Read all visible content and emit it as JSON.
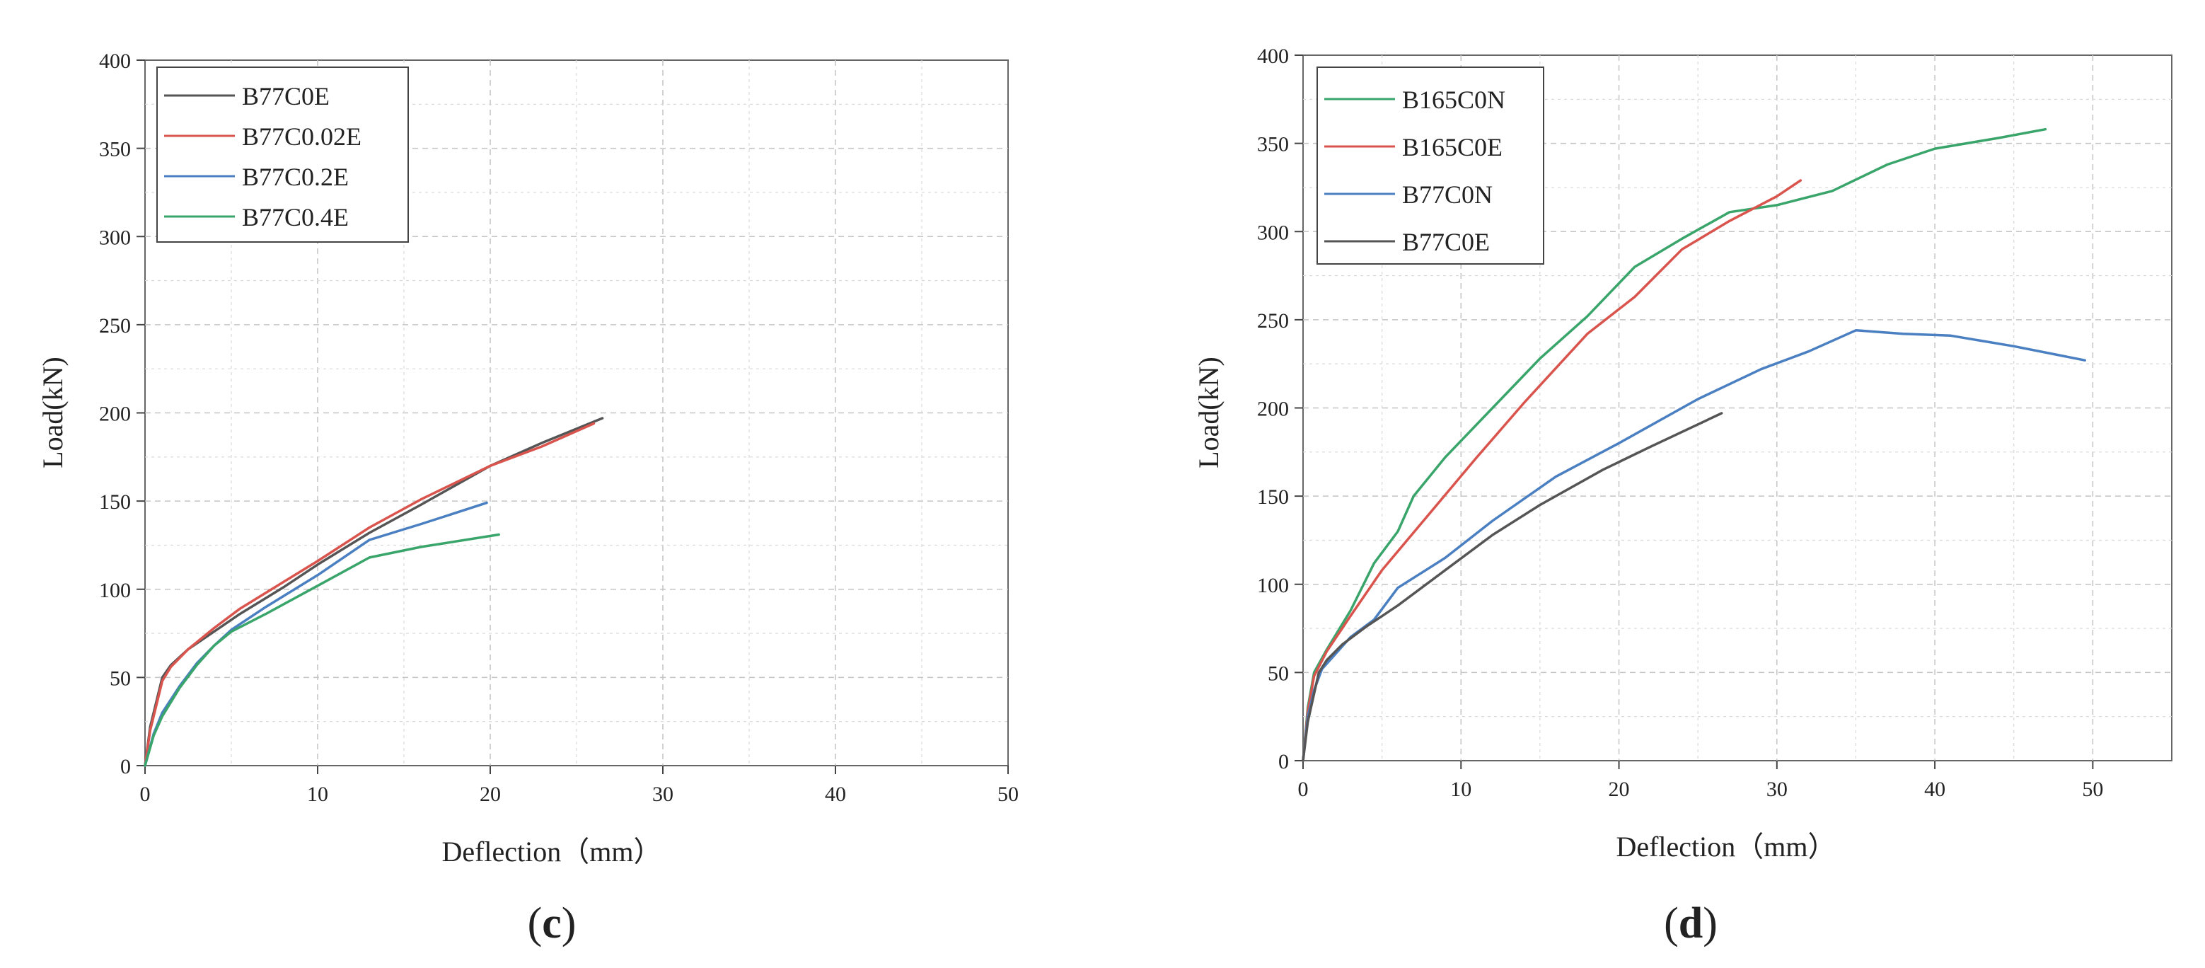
{
  "chart_data": [
    {
      "type": "line",
      "panel": "c",
      "panel_prefix": "(",
      "panel_suffix": ")",
      "title": "",
      "xlabel": "Deflection（mm）",
      "ylabel": "Load(kN)",
      "xlim": [
        0,
        50
      ],
      "ylim": [
        0,
        400
      ],
      "x_ticks": [
        0,
        10,
        20,
        30,
        40,
        50
      ],
      "y_ticks": [
        0,
        50,
        100,
        150,
        200,
        250,
        300,
        350,
        400
      ],
      "grid": true,
      "legend_position": "top-left",
      "series": [
        {
          "name": "B77C0E",
          "color": "#555555",
          "points": [
            [
              0,
              0
            ],
            [
              0.3,
              22
            ],
            [
              0.7,
              38
            ],
            [
              1,
              50
            ],
            [
              1.5,
              57
            ],
            [
              2.5,
              66
            ],
            [
              4,
              76
            ],
            [
              5.5,
              86
            ],
            [
              8,
              101
            ],
            [
              10,
              114
            ],
            [
              13,
              132
            ],
            [
              16,
              148
            ],
            [
              20,
              170
            ],
            [
              23,
              183
            ],
            [
              26.5,
              197
            ]
          ]
        },
        {
          "name": "B77C0.02E",
          "color": "#d9544d",
          "points": [
            [
              0,
              0
            ],
            [
              0.3,
              20
            ],
            [
              0.7,
              36
            ],
            [
              1,
              48
            ],
            [
              1.5,
              56
            ],
            [
              2.5,
              66
            ],
            [
              4,
              78
            ],
            [
              5.5,
              89
            ],
            [
              8,
              104
            ],
            [
              10,
              116
            ],
            [
              13,
              135
            ],
            [
              16,
              151
            ],
            [
              20,
              170
            ],
            [
              23,
              181
            ],
            [
              26,
              194
            ]
          ]
        },
        {
          "name": "B77C0.2E",
          "color": "#4a7fc1",
          "points": [
            [
              0,
              0
            ],
            [
              0.5,
              18
            ],
            [
              1,
              30
            ],
            [
              2,
              45
            ],
            [
              3,
              58
            ],
            [
              4,
              68
            ],
            [
              5,
              77
            ],
            [
              7,
              90
            ],
            [
              10,
              108
            ],
            [
              13,
              128
            ],
            [
              16,
              137
            ],
            [
              19.8,
              149
            ]
          ]
        },
        {
          "name": "B77C0.4E",
          "color": "#3aa56b",
          "points": [
            [
              0,
              0
            ],
            [
              0.5,
              17
            ],
            [
              1,
              28
            ],
            [
              2,
              44
            ],
            [
              3,
              57
            ],
            [
              4,
              68
            ],
            [
              5,
              76
            ],
            [
              7,
              86
            ],
            [
              10,
              102
            ],
            [
              13,
              118
            ],
            [
              16,
              124
            ],
            [
              20.5,
              131
            ]
          ]
        }
      ]
    },
    {
      "type": "line",
      "panel": "d",
      "panel_prefix": "(",
      "panel_suffix": ")",
      "title": "",
      "xlabel": "Deflection（mm）",
      "ylabel": "Load(kN)",
      "xlim": [
        0,
        55
      ],
      "ylim": [
        0,
        400
      ],
      "x_ticks": [
        0,
        10,
        20,
        30,
        40,
        50
      ],
      "y_ticks": [
        0,
        50,
        100,
        150,
        200,
        250,
        300,
        350,
        400
      ],
      "grid": true,
      "legend_position": "top-left",
      "series": [
        {
          "name": "B165C0N",
          "color": "#3aa56b",
          "points": [
            [
              0,
              0
            ],
            [
              0.3,
              30
            ],
            [
              0.7,
              50
            ],
            [
              1.5,
              63
            ],
            [
              3,
              85
            ],
            [
              4.5,
              112
            ],
            [
              6,
              130
            ],
            [
              7,
              150
            ],
            [
              9,
              172
            ],
            [
              12,
              200
            ],
            [
              15,
              228
            ],
            [
              18,
              252
            ],
            [
              21,
              280
            ],
            [
              24,
              296
            ],
            [
              27,
              311
            ],
            [
              30,
              315
            ],
            [
              33.5,
              323
            ],
            [
              37,
              338
            ],
            [
              40,
              347
            ],
            [
              44,
              353
            ],
            [
              47,
              358
            ]
          ]
        },
        {
          "name": "B165C0E",
          "color": "#d9544d",
          "points": [
            [
              0,
              0
            ],
            [
              0.3,
              28
            ],
            [
              0.7,
              48
            ],
            [
              1.5,
              62
            ],
            [
              3,
              82
            ],
            [
              5,
              108
            ],
            [
              8,
              140
            ],
            [
              11,
              172
            ],
            [
              14,
              203
            ],
            [
              18,
              242
            ],
            [
              21,
              263
            ],
            [
              24,
              290
            ],
            [
              27,
              306
            ],
            [
              30,
              320
            ],
            [
              31.5,
              329
            ]
          ]
        },
        {
          "name": "B77C0N",
          "color": "#4a7fc1",
          "points": [
            [
              0,
              0
            ],
            [
              0.3,
              25
            ],
            [
              0.7,
              40
            ],
            [
              1.2,
              52
            ],
            [
              3,
              70
            ],
            [
              4.5,
              80
            ],
            [
              6,
              98
            ],
            [
              9,
              115
            ],
            [
              12,
              136
            ],
            [
              16,
              161
            ],
            [
              20,
              180
            ],
            [
              25,
              205
            ],
            [
              29,
              222
            ],
            [
              32,
              232
            ],
            [
              35,
              244
            ],
            [
              38,
              242
            ],
            [
              41,
              241
            ],
            [
              45,
              235
            ],
            [
              49.5,
              227
            ]
          ]
        },
        {
          "name": "B77C0E",
          "color": "#555555",
          "points": [
            [
              0,
              0
            ],
            [
              0.3,
              22
            ],
            [
              0.7,
              38
            ],
            [
              1,
              50
            ],
            [
              1.5,
              57
            ],
            [
              2.5,
              66
            ],
            [
              4,
              76
            ],
            [
              6,
              88
            ],
            [
              9,
              108
            ],
            [
              12,
              128
            ],
            [
              15,
              145
            ],
            [
              19,
              165
            ],
            [
              22,
              178
            ],
            [
              26.5,
              197
            ]
          ]
        }
      ]
    }
  ]
}
